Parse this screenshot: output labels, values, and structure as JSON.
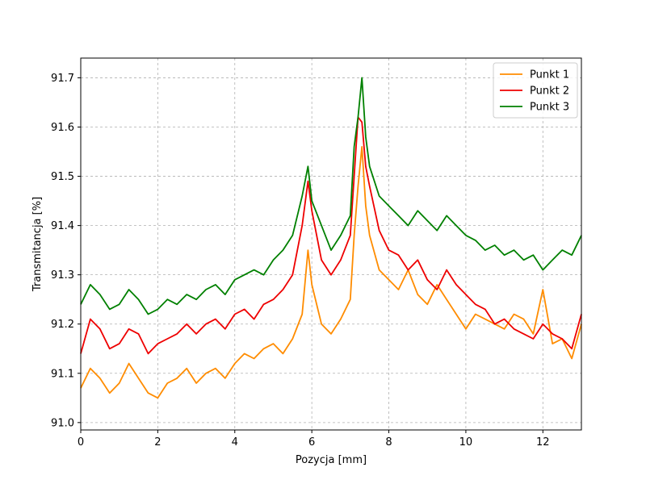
{
  "chart_data": {
    "type": "line",
    "title": "",
    "xlabel": "Pozycja [mm]",
    "ylabel": "Transmitancja [%]",
    "xlim": [
      0,
      13
    ],
    "ylim": [
      90.985,
      91.74
    ],
    "xticks": [
      0,
      2,
      4,
      6,
      8,
      10,
      12
    ],
    "yticks": [
      91.0,
      91.1,
      91.2,
      91.3,
      91.4,
      91.5,
      91.6,
      91.7
    ],
    "grid": true,
    "legend_position": "top-right",
    "series": [
      {
        "name": "Punkt 1",
        "color": "#ff8c00",
        "x": [
          0,
          0.25,
          0.5,
          0.75,
          1.0,
          1.25,
          1.5,
          1.75,
          2.0,
          2.25,
          2.5,
          2.75,
          3.0,
          3.25,
          3.5,
          3.75,
          4.0,
          4.25,
          4.5,
          4.75,
          5.0,
          5.25,
          5.5,
          5.75,
          5.9,
          6.0,
          6.25,
          6.5,
          6.75,
          7.0,
          7.1,
          7.2,
          7.3,
          7.4,
          7.5,
          7.75,
          8.0,
          8.25,
          8.5,
          8.75,
          9.0,
          9.25,
          9.5,
          9.75,
          10.0,
          10.25,
          10.5,
          10.75,
          11.0,
          11.25,
          11.5,
          11.75,
          12.0,
          12.25,
          12.5,
          12.75,
          13.0
        ],
        "y": [
          91.07,
          91.11,
          91.09,
          91.06,
          91.08,
          91.12,
          91.09,
          91.06,
          91.05,
          91.08,
          91.09,
          91.11,
          91.08,
          91.1,
          91.11,
          91.09,
          91.12,
          91.14,
          91.13,
          91.15,
          91.16,
          91.14,
          91.17,
          91.22,
          91.35,
          91.28,
          91.2,
          91.18,
          91.21,
          91.25,
          91.38,
          91.48,
          91.56,
          91.44,
          91.38,
          91.31,
          91.29,
          91.27,
          91.31,
          91.26,
          91.24,
          91.28,
          91.25,
          91.22,
          91.19,
          91.22,
          91.21,
          91.2,
          91.19,
          91.22,
          91.21,
          91.18,
          91.27,
          91.16,
          91.17,
          91.13,
          91.2
        ]
      },
      {
        "name": "Punkt 2",
        "color": "#ee0000",
        "x": [
          0,
          0.25,
          0.5,
          0.75,
          1.0,
          1.25,
          1.5,
          1.75,
          2.0,
          2.25,
          2.5,
          2.75,
          3.0,
          3.25,
          3.5,
          3.75,
          4.0,
          4.25,
          4.5,
          4.75,
          5.0,
          5.25,
          5.5,
          5.75,
          5.9,
          6.0,
          6.25,
          6.5,
          6.75,
          7.0,
          7.1,
          7.2,
          7.3,
          7.4,
          7.5,
          7.75,
          8.0,
          8.25,
          8.5,
          8.75,
          9.0,
          9.25,
          9.5,
          9.75,
          10.0,
          10.25,
          10.5,
          10.75,
          11.0,
          11.25,
          11.5,
          11.75,
          12.0,
          12.25,
          12.5,
          12.75,
          13.0
        ],
        "y": [
          91.14,
          91.21,
          91.19,
          91.15,
          91.16,
          91.19,
          91.18,
          91.14,
          91.16,
          91.17,
          91.18,
          91.2,
          91.18,
          91.2,
          91.21,
          91.19,
          91.22,
          91.23,
          91.21,
          91.24,
          91.25,
          91.27,
          91.3,
          91.4,
          91.49,
          91.43,
          91.33,
          91.3,
          91.33,
          91.38,
          91.5,
          91.62,
          91.61,
          91.52,
          91.48,
          91.39,
          91.35,
          91.34,
          91.31,
          91.33,
          91.29,
          91.27,
          91.31,
          91.28,
          91.26,
          91.24,
          91.23,
          91.2,
          91.21,
          91.19,
          91.18,
          91.17,
          91.2,
          91.18,
          91.17,
          91.15,
          91.22
        ]
      },
      {
        "name": "Punkt 3",
        "color": "#008000",
        "x": [
          0,
          0.25,
          0.5,
          0.75,
          1.0,
          1.25,
          1.5,
          1.75,
          2.0,
          2.25,
          2.5,
          2.75,
          3.0,
          3.25,
          3.5,
          3.75,
          4.0,
          4.25,
          4.5,
          4.75,
          5.0,
          5.25,
          5.5,
          5.75,
          5.9,
          6.0,
          6.25,
          6.5,
          6.75,
          7.0,
          7.1,
          7.2,
          7.3,
          7.4,
          7.5,
          7.75,
          8.0,
          8.25,
          8.5,
          8.75,
          9.0,
          9.25,
          9.5,
          9.75,
          10.0,
          10.25,
          10.5,
          10.75,
          11.0,
          11.25,
          11.5,
          11.75,
          12.0,
          12.25,
          12.5,
          12.75,
          13.0
        ],
        "y": [
          91.24,
          91.28,
          91.26,
          91.23,
          91.24,
          91.27,
          91.25,
          91.22,
          91.23,
          91.25,
          91.24,
          91.26,
          91.25,
          91.27,
          91.28,
          91.26,
          91.29,
          91.3,
          91.31,
          91.3,
          91.33,
          91.35,
          91.38,
          91.46,
          91.52,
          91.45,
          91.4,
          91.35,
          91.38,
          91.42,
          91.56,
          91.62,
          91.7,
          91.58,
          91.52,
          91.46,
          91.44,
          91.42,
          91.4,
          91.43,
          91.41,
          91.39,
          91.42,
          91.4,
          91.38,
          91.37,
          91.35,
          91.36,
          91.34,
          91.35,
          91.33,
          91.34,
          91.31,
          91.33,
          91.35,
          91.34,
          91.38
        ]
      }
    ]
  }
}
